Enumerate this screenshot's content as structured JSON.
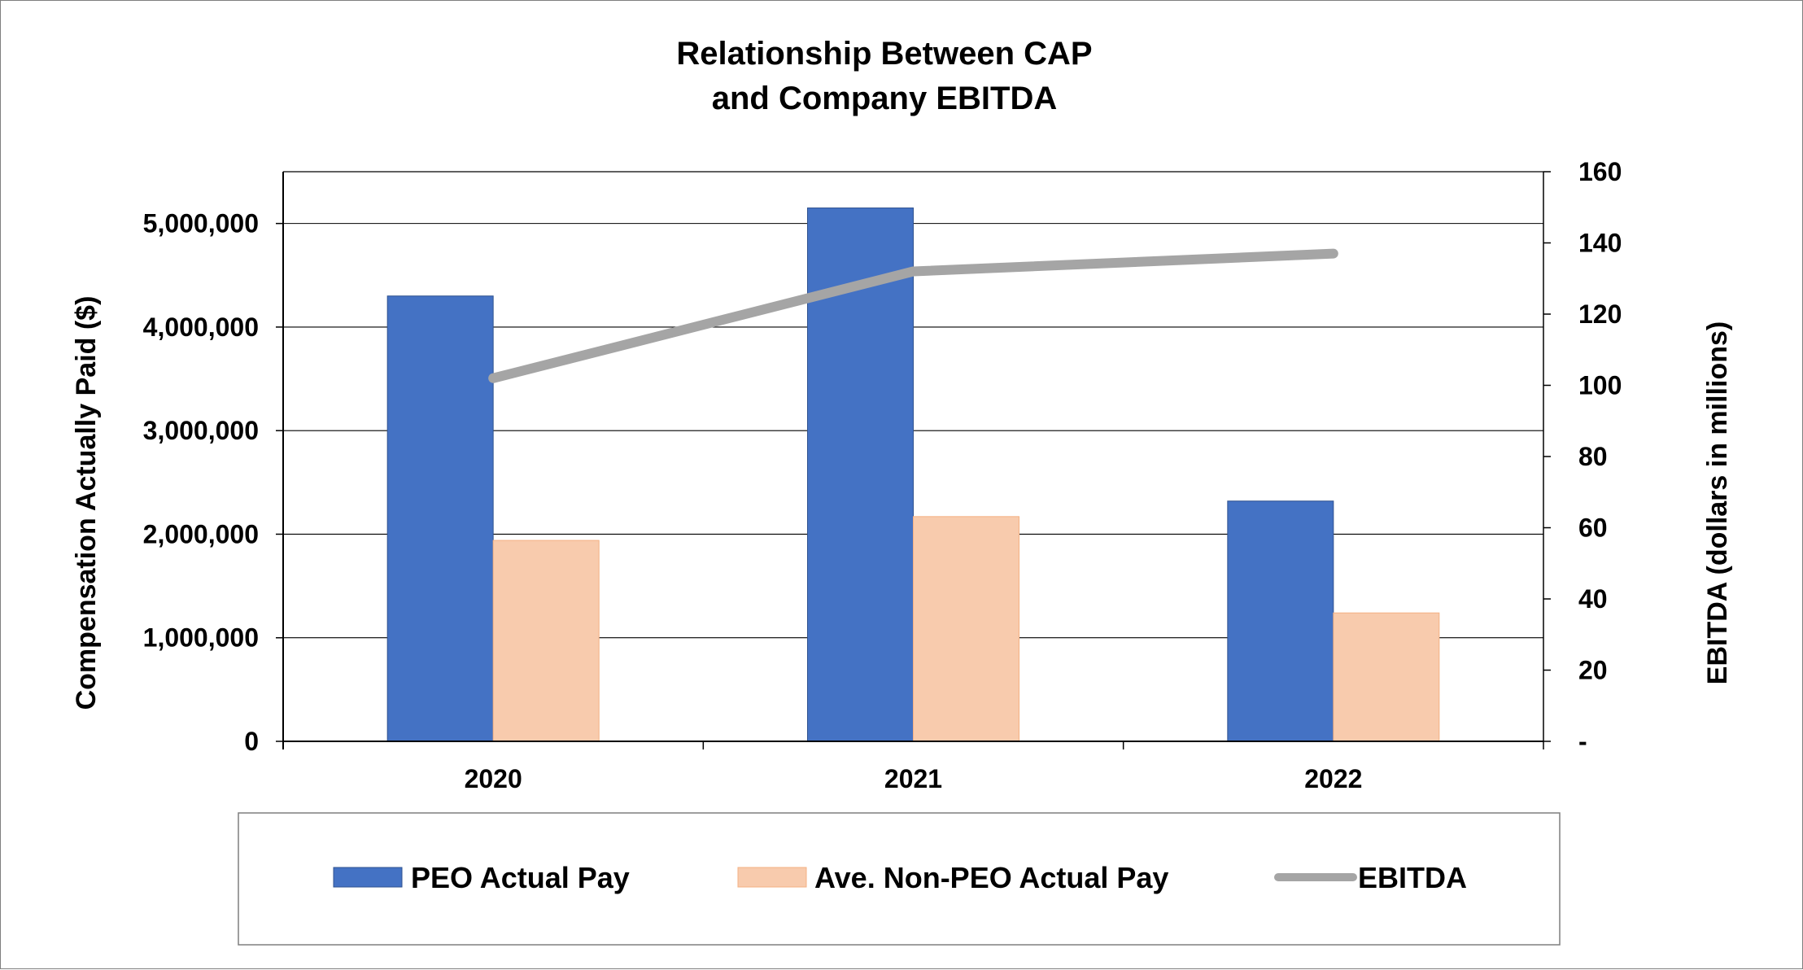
{
  "chart_data": {
    "type": "bar",
    "title_lines": [
      "Relationship Between CAP",
      "and Company EBITDA"
    ],
    "categories": [
      "2020",
      "2021",
      "2022"
    ],
    "series": [
      {
        "name": "PEO Actual Pay",
        "kind": "bar",
        "axis": "left",
        "color": "#4472c4",
        "values": [
          4300000,
          5150000,
          2320000
        ]
      },
      {
        "name": "Ave. Non-PEO Actual Pay",
        "kind": "bar",
        "axis": "left",
        "color": "#f8cbad",
        "values": [
          1940000,
          2170000,
          1240000
        ]
      },
      {
        "name": "EBITDA",
        "kind": "line",
        "axis": "right",
        "color": "#a5a5a5",
        "values": [
          102,
          132,
          137
        ]
      }
    ],
    "left_axis": {
      "label": "Compensation Actually Paid ($)",
      "ylim": [
        0,
        5500000
      ],
      "ticks": [
        0,
        1000000,
        2000000,
        3000000,
        4000000,
        5000000
      ],
      "tick_labels": [
        "0",
        "1,000,000",
        "2,000,000",
        "3,000,000",
        "4,000,000",
        "5,000,000"
      ]
    },
    "right_axis": {
      "label": "EBITDA (dollars in millions)",
      "ylim": [
        0,
        160
      ],
      "ticks": [
        0,
        20,
        40,
        60,
        80,
        100,
        120,
        140,
        160
      ],
      "tick_labels": [
        "-",
        "20",
        "40",
        "60",
        "80",
        "100",
        "120",
        "140",
        "160"
      ]
    },
    "grid": true,
    "legend_position": "bottom"
  }
}
